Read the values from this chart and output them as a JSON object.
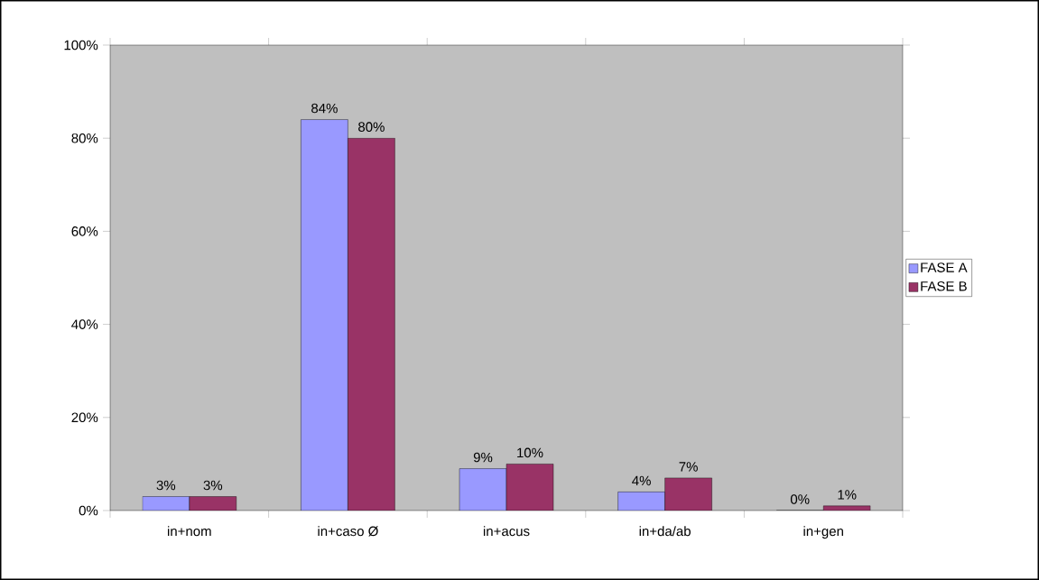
{
  "chart_data": {
    "type": "bar",
    "categories": [
      "in+nom",
      "in+caso Ø",
      "in+acus",
      "in+da/ab",
      "in+gen"
    ],
    "series": [
      {
        "name": "FASE A",
        "color": "#9999ff",
        "values": [
          3,
          84,
          9,
          4,
          0
        ],
        "value_labels": [
          "3%",
          "84%",
          "9%",
          "4%",
          "0%"
        ]
      },
      {
        "name": "FASE B",
        "color": "#993366",
        "values": [
          3,
          80,
          10,
          7,
          1
        ],
        "value_labels": [
          "3%",
          "80%",
          "10%",
          "7%",
          "1%"
        ]
      }
    ],
    "ylim": [
      0,
      100
    ],
    "yticks": [
      {
        "value": 0,
        "label": "0%"
      },
      {
        "value": 20,
        "label": "20%"
      },
      {
        "value": 40,
        "label": "40%"
      },
      {
        "value": 60,
        "label": "60%"
      },
      {
        "value": 80,
        "label": "80%"
      },
      {
        "value": 100,
        "label": "100%"
      }
    ],
    "legend": "right"
  }
}
